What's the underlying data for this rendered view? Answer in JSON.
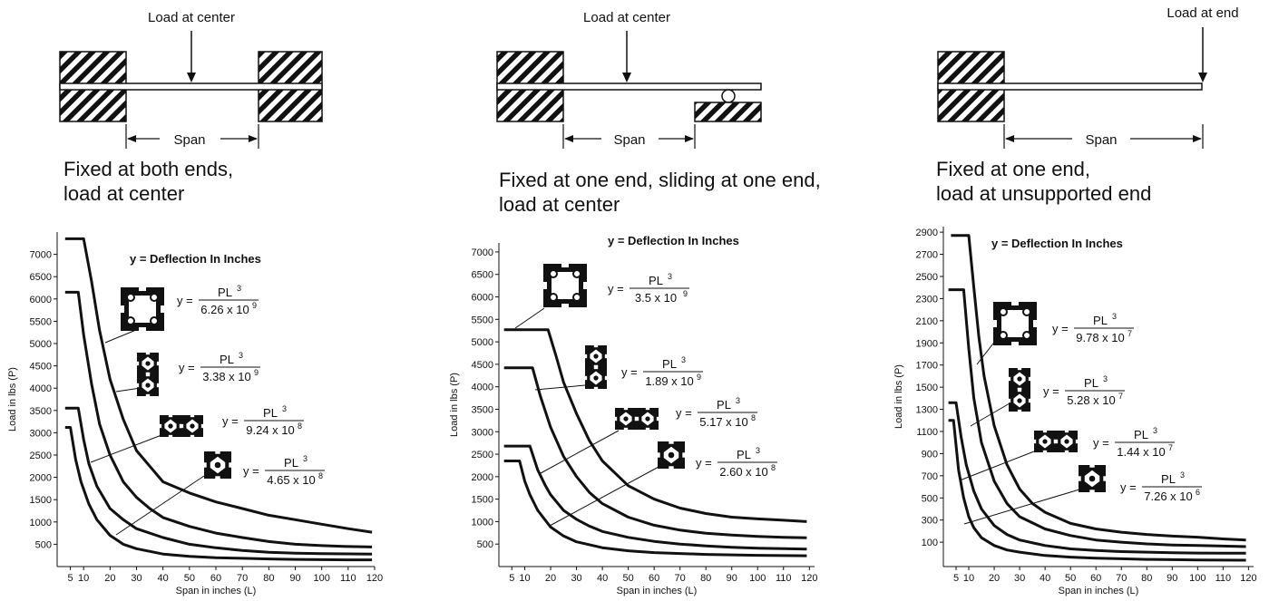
{
  "panels": [
    {
      "diagram": {
        "load_label": "Load at center",
        "span_label": "Span"
      },
      "caption": [
        "Fixed at both ends,",
        "load at center"
      ],
      "chart_data": {
        "type": "line",
        "heading": "y = Deflection In Inches",
        "xlabel": "Span in inches (L)",
        "ylabel": "Load in lbs (P)",
        "xlim": [
          0,
          120
        ],
        "ylim": [
          0,
          7500
        ],
        "xticks": [
          5,
          10,
          20,
          30,
          40,
          50,
          60,
          70,
          80,
          90,
          100,
          110,
          120
        ],
        "yticks": [
          500,
          1000,
          1500,
          2000,
          2500,
          3000,
          3500,
          4000,
          4500,
          5000,
          5500,
          6000,
          6500,
          7000
        ],
        "series": [
          {
            "formula": {
              "num": "PL",
              "num_sup": "3",
              "den": "6.26 x 10",
              "den_sup": "9"
            },
            "profile": "square-large",
            "x": [
              3,
              10,
              13,
              16,
              20,
              25,
              30,
              35,
              40,
              50,
              60,
              70,
              80,
              90,
              100,
              110,
              119
            ],
            "y": [
              7350,
              7350,
              6400,
              5300,
              4200,
              3300,
              2600,
              2250,
              1900,
              1650,
              1450,
              1300,
              1150,
              1050,
              950,
              850,
              770
            ]
          },
          {
            "formula": {
              "num": "PL",
              "num_sup": "3",
              "den": "3.38 x 10",
              "den_sup": "9"
            },
            "profile": "tall",
            "x": [
              3,
              8,
              10,
              13,
              16,
              20,
              25,
              30,
              35,
              40,
              50,
              60,
              70,
              80,
              90,
              100,
              110,
              119
            ],
            "y": [
              6150,
              6150,
              5200,
              4100,
              3200,
              2500,
              1900,
              1550,
              1300,
              1100,
              900,
              750,
              650,
              560,
              500,
              470,
              450,
              440
            ]
          },
          {
            "formula": {
              "num": "PL",
              "num_sup": "3",
              "den": "9.24 x 10",
              "den_sup": "8"
            },
            "profile": "wide",
            "x": [
              3,
              8,
              10,
              12,
              15,
              20,
              25,
              30,
              40,
              50,
              60,
              70,
              80,
              90,
              100,
              110,
              119
            ],
            "y": [
              3550,
              3550,
              2850,
              2300,
              1800,
              1300,
              1050,
              850,
              650,
              500,
              420,
              360,
              320,
              300,
              290,
              285,
              280
            ]
          },
          {
            "formula": {
              "num": "PL",
              "num_sup": "3",
              "den": "4.65 x 10",
              "den_sup": "8"
            },
            "profile": "square-small",
            "x": [
              3,
              5,
              7,
              9,
              12,
              15,
              20,
              25,
              30,
              40,
              50,
              60,
              70,
              80,
              90,
              100,
              110,
              119
            ],
            "y": [
              3120,
              3120,
              2400,
              1900,
              1400,
              1050,
              700,
              500,
              400,
              280,
              230,
              200,
              185,
              170,
              160,
              155,
              150,
              150
            ]
          }
        ]
      }
    },
    {
      "diagram": {
        "load_label": "Load at center",
        "span_label": "Span"
      },
      "caption": [
        "Fixed at one end, sliding at one end,",
        "load at center"
      ],
      "chart_data": {
        "type": "line",
        "heading": "y = Deflection In Inches",
        "xlabel": "Span in inches (L)",
        "ylabel": "Load in lbs (P)",
        "xlim": [
          0,
          122
        ],
        "ylim": [
          0,
          7200
        ],
        "xticks": [
          5,
          10,
          20,
          30,
          40,
          50,
          60,
          70,
          80,
          90,
          100,
          110,
          120
        ],
        "yticks": [
          500,
          1000,
          1500,
          2000,
          2500,
          3000,
          3500,
          4000,
          4500,
          5000,
          5500,
          6000,
          6500,
          7000
        ],
        "series": [
          {
            "formula": {
              "num": "PL",
              "num_sup": "3",
              "den": "3.5 x 10",
              "den_sup": "9"
            },
            "profile": "square-large",
            "x": [
              2,
              19,
              22,
              25,
              30,
              35,
              40,
              50,
              60,
              70,
              80,
              90,
              100,
              110,
              119
            ],
            "y": [
              5270,
              5270,
              4700,
              4100,
              3400,
              2800,
              2350,
              1800,
              1500,
              1300,
              1180,
              1100,
              1060,
              1030,
              1000
            ]
          },
          {
            "formula": {
              "num": "PL",
              "num_sup": "3",
              "den": "1.89 x 10",
              "den_sup": "9"
            },
            "profile": "tall",
            "x": [
              2,
              13,
              16,
              20,
              25,
              30,
              35,
              40,
              50,
              60,
              70,
              80,
              90,
              100,
              110,
              119
            ],
            "y": [
              4420,
              4420,
              3800,
              3100,
              2450,
              2000,
              1650,
              1400,
              1100,
              920,
              810,
              740,
              700,
              670,
              650,
              640
            ]
          },
          {
            "formula": {
              "num": "PL",
              "num_sup": "3",
              "den": "5.17 x 10",
              "den_sup": "8"
            },
            "profile": "wide",
            "x": [
              2,
              12,
              15,
              18,
              20,
              25,
              30,
              35,
              40,
              50,
              60,
              70,
              80,
              90,
              100,
              110,
              119
            ],
            "y": [
              2680,
              2680,
              2150,
              1800,
              1600,
              1250,
              1050,
              900,
              780,
              650,
              560,
              500,
              460,
              430,
              410,
              400,
              390
            ]
          },
          {
            "formula": {
              "num": "PL",
              "num_sup": "3",
              "den": "2.60 x 10",
              "den_sup": "8"
            },
            "profile": "square-small",
            "x": [
              2,
              8,
              10,
              12,
              15,
              20,
              25,
              30,
              40,
              50,
              60,
              70,
              80,
              90,
              100,
              110,
              119
            ],
            "y": [
              2350,
              2350,
              1900,
              1600,
              1250,
              880,
              680,
              550,
              420,
              350,
              310,
              290,
              270,
              260,
              250,
              245,
              240
            ]
          }
        ]
      }
    },
    {
      "diagram": {
        "load_label": "Load at end",
        "span_label": "Span"
      },
      "caption": [
        "Fixed at one end,",
        "load at unsupported end"
      ],
      "chart_data": {
        "type": "line",
        "heading": "y = Deflection In Inches",
        "xlabel": "Span in inches (L)",
        "ylabel": "Load in lbs (P)",
        "xlim": [
          0,
          122
        ],
        "ylim": [
          -120,
          2950
        ],
        "xticks": [
          5,
          10,
          20,
          30,
          40,
          50,
          60,
          70,
          80,
          90,
          100,
          110,
          120
        ],
        "yticks": [
          100,
          300,
          500,
          700,
          900,
          1100,
          1300,
          1500,
          1700,
          1900,
          2100,
          2300,
          2500,
          2700,
          2900
        ],
        "series": [
          {
            "formula": {
              "num": "PL",
              "num_sup": "3",
              "den": "9.78 x 10",
              "den_sup": "7"
            },
            "profile": "square-large",
            "x": [
              3,
              10,
              12,
              14,
              16,
              20,
              25,
              30,
              35,
              40,
              50,
              60,
              70,
              80,
              90,
              100,
              110,
              119
            ],
            "y": [
              2870,
              2870,
              2400,
              1950,
              1600,
              1150,
              800,
              580,
              450,
              370,
              270,
              220,
              190,
              170,
              155,
              145,
              130,
              120
            ]
          },
          {
            "formula": {
              "num": "PL",
              "num_sup": "3",
              "den": "5.28 x 10",
              "den_sup": "7"
            },
            "profile": "tall",
            "x": [
              2,
              8,
              10,
              12,
              15,
              20,
              25,
              30,
              40,
              50,
              60,
              70,
              80,
              90,
              100,
              110,
              119
            ],
            "y": [
              2380,
              2380,
              1850,
              1400,
              1000,
              650,
              450,
              330,
              220,
              160,
              120,
              100,
              85,
              75,
              70,
              65,
              60
            ]
          },
          {
            "formula": {
              "num": "PL",
              "num_sup": "3",
              "den": "1.44 x 10",
              "den_sup": "7"
            },
            "profile": "wide",
            "x": [
              2,
              5,
              7,
              9,
              12,
              15,
              20,
              25,
              30,
              40,
              50,
              60,
              70,
              80,
              90,
              100,
              110,
              119
            ],
            "y": [
              1360,
              1360,
              1050,
              800,
              560,
              400,
              250,
              170,
              120,
              70,
              40,
              25,
              15,
              10,
              5,
              2,
              0,
              0
            ]
          },
          {
            "formula": {
              "num": "PL",
              "num_sup": "3",
              "den": "7.26 x 10",
              "den_sup": "6"
            },
            "profile": "square-small",
            "x": [
              2,
              4,
              6,
              8,
              10,
              12,
              15,
              20,
              25,
              30,
              40,
              50,
              60,
              70,
              80,
              90,
              100,
              110,
              119
            ],
            "y": [
              1200,
              1200,
              750,
              500,
              330,
              230,
              140,
              70,
              30,
              10,
              -20,
              -35,
              -45,
              -50,
              -55,
              -58,
              -60,
              -62,
              -63
            ]
          }
        ]
      }
    }
  ]
}
